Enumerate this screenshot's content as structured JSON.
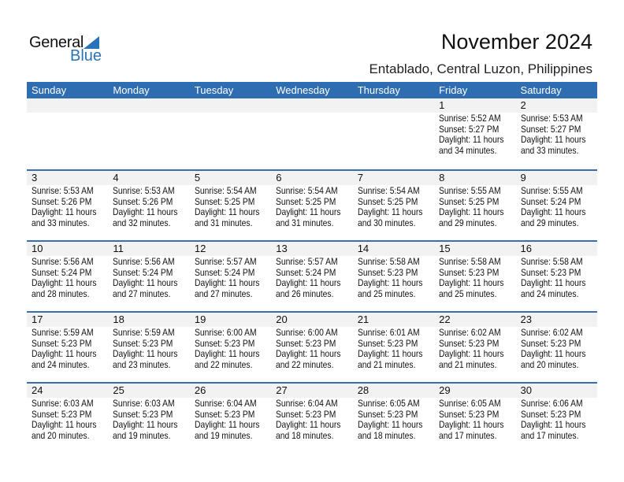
{
  "logo": {
    "text1": "General",
    "text2": "Blue"
  },
  "title": "November 2024",
  "subtitle": "Entablado, Central Luzon, Philippines",
  "colors": {
    "header": "#2e6db2",
    "accent": "#2a73b8",
    "date_strip": "#f2f2f2"
  },
  "weekdays": [
    "Sunday",
    "Monday",
    "Tuesday",
    "Wednesday",
    "Thursday",
    "Friday",
    "Saturday"
  ],
  "labels": {
    "sunrise": "Sunrise:",
    "sunset": "Sunset:",
    "daylight": "Daylight: 11 hours",
    "and": "and",
    "minutes": "minutes."
  },
  "weeks": [
    [
      null,
      null,
      null,
      null,
      null,
      {
        "date": "1",
        "sunrise": "5:52 AM",
        "sunset": "5:27 PM",
        "min": "34"
      },
      {
        "date": "2",
        "sunrise": "5:53 AM",
        "sunset": "5:27 PM",
        "min": "33"
      }
    ],
    [
      {
        "date": "3",
        "sunrise": "5:53 AM",
        "sunset": "5:26 PM",
        "min": "33"
      },
      {
        "date": "4",
        "sunrise": "5:53 AM",
        "sunset": "5:26 PM",
        "min": "32"
      },
      {
        "date": "5",
        "sunrise": "5:54 AM",
        "sunset": "5:25 PM",
        "min": "31"
      },
      {
        "date": "6",
        "sunrise": "5:54 AM",
        "sunset": "5:25 PM",
        "min": "31"
      },
      {
        "date": "7",
        "sunrise": "5:54 AM",
        "sunset": "5:25 PM",
        "min": "30"
      },
      {
        "date": "8",
        "sunrise": "5:55 AM",
        "sunset": "5:25 PM",
        "min": "29"
      },
      {
        "date": "9",
        "sunrise": "5:55 AM",
        "sunset": "5:24 PM",
        "min": "29"
      }
    ],
    [
      {
        "date": "10",
        "sunrise": "5:56 AM",
        "sunset": "5:24 PM",
        "min": "28"
      },
      {
        "date": "11",
        "sunrise": "5:56 AM",
        "sunset": "5:24 PM",
        "min": "27"
      },
      {
        "date": "12",
        "sunrise": "5:57 AM",
        "sunset": "5:24 PM",
        "min": "27"
      },
      {
        "date": "13",
        "sunrise": "5:57 AM",
        "sunset": "5:24 PM",
        "min": "26"
      },
      {
        "date": "14",
        "sunrise": "5:58 AM",
        "sunset": "5:23 PM",
        "min": "25"
      },
      {
        "date": "15",
        "sunrise": "5:58 AM",
        "sunset": "5:23 PM",
        "min": "25"
      },
      {
        "date": "16",
        "sunrise": "5:58 AM",
        "sunset": "5:23 PM",
        "min": "24"
      }
    ],
    [
      {
        "date": "17",
        "sunrise": "5:59 AM",
        "sunset": "5:23 PM",
        "min": "24"
      },
      {
        "date": "18",
        "sunrise": "5:59 AM",
        "sunset": "5:23 PM",
        "min": "23"
      },
      {
        "date": "19",
        "sunrise": "6:00 AM",
        "sunset": "5:23 PM",
        "min": "22"
      },
      {
        "date": "20",
        "sunrise": "6:00 AM",
        "sunset": "5:23 PM",
        "min": "22"
      },
      {
        "date": "21",
        "sunrise": "6:01 AM",
        "sunset": "5:23 PM",
        "min": "21"
      },
      {
        "date": "22",
        "sunrise": "6:02 AM",
        "sunset": "5:23 PM",
        "min": "21"
      },
      {
        "date": "23",
        "sunrise": "6:02 AM",
        "sunset": "5:23 PM",
        "min": "20"
      }
    ],
    [
      {
        "date": "24",
        "sunrise": "6:03 AM",
        "sunset": "5:23 PM",
        "min": "20"
      },
      {
        "date": "25",
        "sunrise": "6:03 AM",
        "sunset": "5:23 PM",
        "min": "19"
      },
      {
        "date": "26",
        "sunrise": "6:04 AM",
        "sunset": "5:23 PM",
        "min": "19"
      },
      {
        "date": "27",
        "sunrise": "6:04 AM",
        "sunset": "5:23 PM",
        "min": "18"
      },
      {
        "date": "28",
        "sunrise": "6:05 AM",
        "sunset": "5:23 PM",
        "min": "18"
      },
      {
        "date": "29",
        "sunrise": "6:05 AM",
        "sunset": "5:23 PM",
        "min": "17"
      },
      {
        "date": "30",
        "sunrise": "6:06 AM",
        "sunset": "5:23 PM",
        "min": "17"
      }
    ]
  ]
}
